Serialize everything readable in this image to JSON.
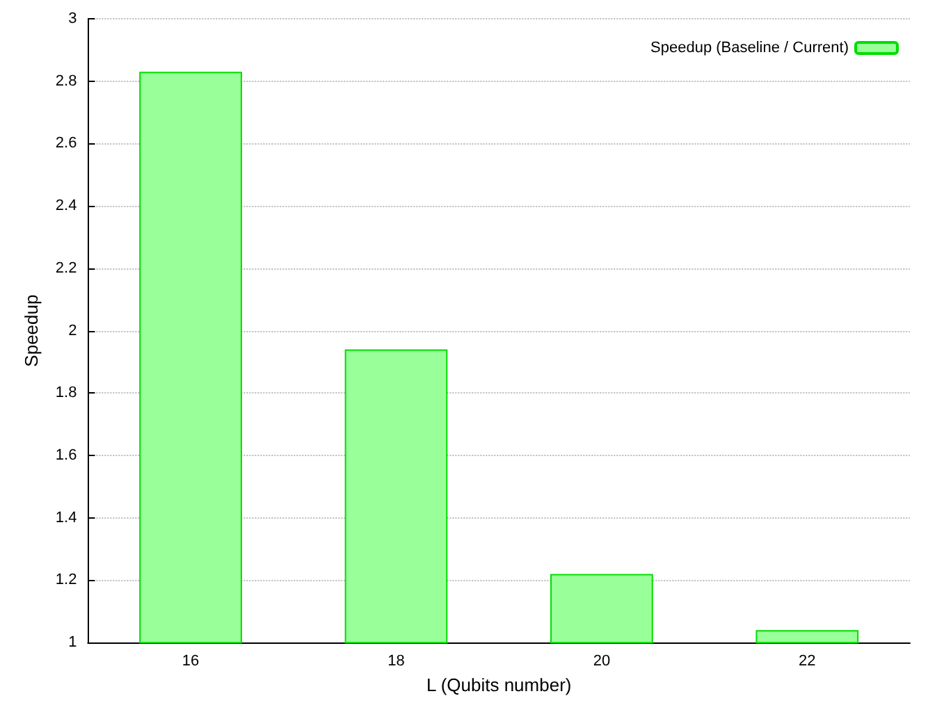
{
  "chart_data": {
    "type": "bar",
    "xlabel": "L (Qubits number)",
    "ylabel": "Speedup",
    "categories": [
      "16",
      "18",
      "20",
      "22"
    ],
    "series": [
      {
        "name": "Speedup (Baseline / Current)",
        "color": "#99ff99",
        "values": [
          2.83,
          1.94,
          1.22,
          1.04
        ]
      }
    ],
    "ylim": [
      1,
      3
    ],
    "yticks": [
      1,
      1.2,
      1.4,
      1.6,
      1.8,
      2,
      2.2,
      2.4,
      2.6,
      2.8,
      3
    ],
    "grid": "y",
    "legend": "top right"
  }
}
